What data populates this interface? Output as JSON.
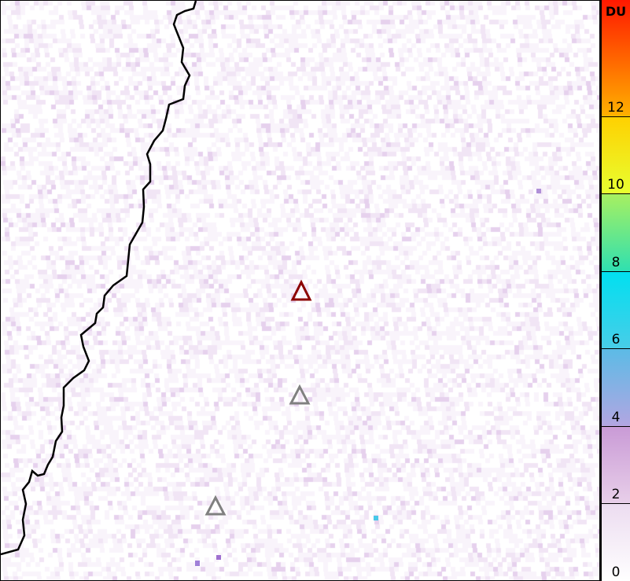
{
  "colorbar": {
    "unit": "DU",
    "min": 0,
    "max": 15,
    "ticks": [
      "0",
      "2",
      "4",
      "6",
      "8",
      "10",
      "12"
    ],
    "tick_values": [
      0,
      2,
      4,
      6,
      8,
      10,
      12
    ],
    "stops": [
      {
        "v": 0,
        "c": "#ffffff"
      },
      {
        "v": 2,
        "c": "#ecdcf0"
      },
      {
        "v": 2.01,
        "c": "#e8cfe9"
      },
      {
        "v": 4,
        "c": "#c99ad6"
      },
      {
        "v": 4.01,
        "c": "#b2a6e2"
      },
      {
        "v": 6,
        "c": "#5bbbe6"
      },
      {
        "v": 6.01,
        "c": "#48cde8"
      },
      {
        "v": 8,
        "c": "#00e0f0"
      },
      {
        "v": 8.01,
        "c": "#30e0b0"
      },
      {
        "v": 10,
        "c": "#a8f060"
      },
      {
        "v": 10.01,
        "c": "#e8ff30"
      },
      {
        "v": 12,
        "c": "#ffd000"
      },
      {
        "v": 12.01,
        "c": "#ffb000"
      },
      {
        "v": 15,
        "c": "#ff1800"
      }
    ]
  },
  "map": {
    "background": "#ffffff",
    "noise_color": "#b070c8",
    "coastline_color": "#000000",
    "volcanoes": [
      {
        "name": "primary-volcano",
        "color": "#8b0000"
      },
      {
        "name": "volcano",
        "color": "#808080"
      },
      {
        "name": "volcano",
        "color": "#808080"
      }
    ]
  }
}
